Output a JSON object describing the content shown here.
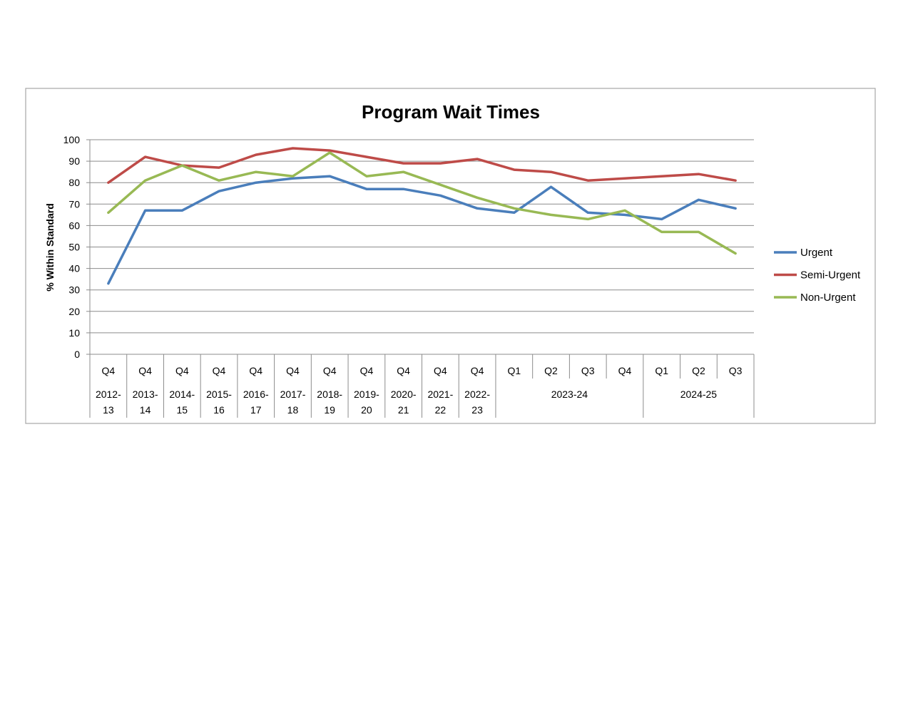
{
  "chart_data": {
    "type": "line",
    "title": "Program Wait Times",
    "xlabel": "",
    "ylabel": "% Within Standard",
    "ylim": [
      0,
      100
    ],
    "yticks": [
      0,
      10,
      20,
      30,
      40,
      50,
      60,
      70,
      80,
      90,
      100
    ],
    "grid": true,
    "legend_position": "right",
    "categories": [
      {
        "quarter": "Q4",
        "year": "2012-13"
      },
      {
        "quarter": "Q4",
        "year": "2013-14"
      },
      {
        "quarter": "Q4",
        "year": "2014-15"
      },
      {
        "quarter": "Q4",
        "year": "2015-16"
      },
      {
        "quarter": "Q4",
        "year": "2016-17"
      },
      {
        "quarter": "Q4",
        "year": "2017-18"
      },
      {
        "quarter": "Q4",
        "year": "2018-19"
      },
      {
        "quarter": "Q4",
        "year": "2019-20"
      },
      {
        "quarter": "Q4",
        "year": "2020-21"
      },
      {
        "quarter": "Q4",
        "year": "2021-22"
      },
      {
        "quarter": "Q4",
        "year": "2022-23"
      },
      {
        "quarter": "Q1",
        "year": "2023-24"
      },
      {
        "quarter": "Q2",
        "year": "2023-24"
      },
      {
        "quarter": "Q3",
        "year": "2023-24"
      },
      {
        "quarter": "Q4",
        "year": "2023-24"
      },
      {
        "quarter": "Q1",
        "year": "2024-25"
      },
      {
        "quarter": "Q2",
        "year": "2024-25"
      },
      {
        "quarter": "Q3",
        "year": "2024-25"
      }
    ],
    "year_groups": [
      {
        "label_top": "2012-",
        "label_bottom": "13",
        "span": 1
      },
      {
        "label_top": "2013-",
        "label_bottom": "14",
        "span": 1
      },
      {
        "label_top": "2014-",
        "label_bottom": "15",
        "span": 1
      },
      {
        "label_top": "2015-",
        "label_bottom": "16",
        "span": 1
      },
      {
        "label_top": "2016-",
        "label_bottom": "17",
        "span": 1
      },
      {
        "label_top": "2017-",
        "label_bottom": "18",
        "span": 1
      },
      {
        "label_top": "2018-",
        "label_bottom": "19",
        "span": 1
      },
      {
        "label_top": "2019-",
        "label_bottom": "20",
        "span": 1
      },
      {
        "label_top": "2020-",
        "label_bottom": "21",
        "span": 1
      },
      {
        "label_top": "2021-",
        "label_bottom": "22",
        "span": 1
      },
      {
        "label_top": "2022-",
        "label_bottom": "23",
        "span": 1
      },
      {
        "label_top": "2023-24",
        "label_bottom": "",
        "span": 4
      },
      {
        "label_top": "2024-25",
        "label_bottom": "",
        "span": 3
      }
    ],
    "series": [
      {
        "name": "Urgent",
        "color": "#4a7ebb",
        "values": [
          33,
          67,
          67,
          76,
          80,
          82,
          83,
          77,
          77,
          74,
          68,
          66,
          78,
          66,
          65,
          63,
          72,
          68
        ]
      },
      {
        "name": "Semi-Urgent",
        "color": "#be4b48",
        "values": [
          80,
          92,
          88,
          87,
          93,
          96,
          95,
          92,
          89,
          89,
          91,
          86,
          85,
          81,
          82,
          83,
          84,
          81
        ]
      },
      {
        "name": "Non-Urgent",
        "color": "#98b954",
        "values": [
          66,
          81,
          88,
          81,
          85,
          83,
          94,
          83,
          85,
          79,
          73,
          68,
          65,
          63,
          67,
          57,
          57,
          47
        ]
      }
    ]
  }
}
